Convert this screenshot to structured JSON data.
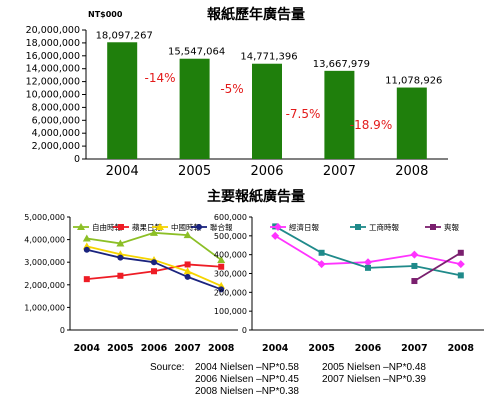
{
  "colors": {
    "bar": "#1f7f0c",
    "change": "#e31b1b",
    "axis": "#000000"
  },
  "chart_data": [
    {
      "type": "bar",
      "title": "報紙歷年廣告量",
      "unit_label": "NT$000",
      "categories": [
        "2004",
        "2005",
        "2006",
        "2007",
        "2008"
      ],
      "values": [
        18097267,
        15547064,
        14771396,
        13667979,
        11078926
      ],
      "value_labels": [
        "18,097,267",
        "15,547,064",
        "14,771,396",
        "13,667,979",
        "11,078,926"
      ],
      "changes": [
        "-14%",
        "-5%",
        "-7.5%",
        "-18.9%"
      ],
      "ylim": [
        0,
        20000000
      ],
      "yticks": [
        0,
        2000000,
        4000000,
        6000000,
        8000000,
        10000000,
        12000000,
        14000000,
        16000000,
        18000000,
        20000000
      ],
      "ytick_labels": [
        "0",
        "2,000,000",
        "4,000,000",
        "6,000,000",
        "8,000,000",
        "10,000,000",
        "12,000,000",
        "14,000,000",
        "16,000,000",
        "18,000,000",
        "20,000,000"
      ]
    },
    {
      "type": "line",
      "title": "主要報紙廣告量",
      "categories": [
        "2004",
        "2005",
        "2006",
        "2007",
        "2008"
      ],
      "ylim": [
        0,
        5000000
      ],
      "yticks": [
        0,
        1000000,
        2000000,
        3000000,
        4000000,
        5000000
      ],
      "ytick_labels": [
        "0",
        "1,000,000",
        "2,000,000",
        "3,000,000",
        "4,000,000",
        "5,000,000"
      ],
      "legend": "top",
      "series": [
        {
          "name": "自由時報",
          "color": "#8cbf26",
          "marker": "triangle",
          "values": [
            4050000,
            3830000,
            4300000,
            4200000,
            3100000
          ]
        },
        {
          "name": "蘋果日報",
          "color": "#ee1c25",
          "marker": "square",
          "values": [
            2250000,
            2400000,
            2600000,
            2900000,
            2800000
          ]
        },
        {
          "name": "中國時報",
          "color": "#f5d400",
          "marker": "triangle",
          "values": [
            3700000,
            3350000,
            3100000,
            2600000,
            1950000
          ]
        },
        {
          "name": "聯合報",
          "color": "#1a237e",
          "marker": "circle",
          "values": [
            3550000,
            3200000,
            3000000,
            2350000,
            1800000
          ]
        }
      ]
    },
    {
      "type": "line",
      "categories": [
        "2004",
        "2005",
        "2006",
        "2007",
        "2008"
      ],
      "ylim": [
        0,
        600000
      ],
      "yticks": [
        0,
        100000,
        200000,
        300000,
        400000,
        500000,
        600000
      ],
      "ytick_labels": [
        "0",
        "100,000",
        "200,000",
        "300,000",
        "400,000",
        "500,000",
        "600,000"
      ],
      "legend": "top",
      "series": [
        {
          "name": "經濟日報",
          "color": "#ff33ff",
          "marker": "diamond",
          "values": [
            500000,
            350000,
            360000,
            400000,
            350000
          ]
        },
        {
          "name": "工商時報",
          "color": "#1f8a8a",
          "marker": "square",
          "values": [
            550000,
            410000,
            330000,
            340000,
            290000
          ]
        },
        {
          "name": "爽報",
          "color": "#7a1f6e",
          "marker": "square",
          "values": [
            null,
            null,
            null,
            260000,
            410000
          ]
        }
      ]
    }
  ],
  "source": {
    "prefix": "Source:",
    "lines": [
      "2004 Nielsen –NP*0.58",
      "2005 Nielsen –NP*0.48",
      "2006 Nielsen –NP*0.45",
      "2007 Nielsen –NP*0.39",
      "2008 Nielsen –NP*0.38"
    ]
  }
}
